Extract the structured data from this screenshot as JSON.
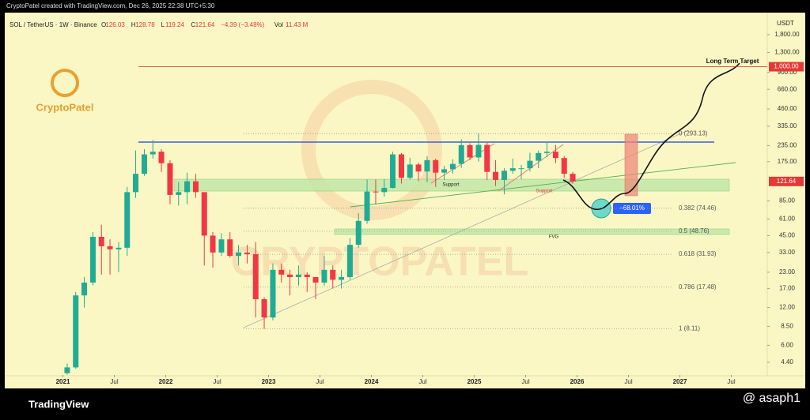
{
  "top_bar": "CryptoPatel created with TradingView.com, Dec 26, 2025 22:38 UTC+5:30",
  "brand": "TradingView",
  "author": "@ asaph1",
  "chart_data": {
    "type": "candlestick",
    "symbol": "SOL / TetherUS · 1W · Binance",
    "header_values": [
      {
        "key": "O",
        "value": "126.03"
      },
      {
        "key": "H",
        "value": "128.78"
      },
      {
        "key": "L",
        "value": "119.24"
      },
      {
        "key": "C",
        "value": "121.64"
      }
    ],
    "change": "−4.39 (−3.48%)",
    "volume_key": "Vol",
    "volume": "11.43 M",
    "currency": "USDT",
    "watermark": "CRYPTOPATEL",
    "logo_text": "CryptoPatel",
    "log_scale": true,
    "up_color": "#22ab94",
    "down_color": "#f23645",
    "x": [
      2021.042,
      2021.125,
      2021.208,
      2021.292,
      2021.375,
      2021.458,
      2021.542,
      2021.625,
      2021.708,
      2021.792,
      2021.875,
      2021.958,
      2022.042,
      2022.125,
      2022.208,
      2022.292,
      2022.375,
      2022.458,
      2022.542,
      2022.625,
      2022.708,
      2022.792,
      2022.875,
      2022.958,
      2023.042,
      2023.125,
      2023.208,
      2023.292,
      2023.375,
      2023.458,
      2023.542,
      2023.625,
      2023.708,
      2023.792,
      2023.875,
      2023.958,
      2024.042,
      2024.125,
      2024.208,
      2024.292,
      2024.375,
      2024.458,
      2024.542,
      2024.625,
      2024.708,
      2024.792,
      2024.875,
      2024.958,
      2025.042,
      2025.125,
      2025.208,
      2025.292,
      2025.375,
      2025.458,
      2025.542,
      2025.625,
      2025.708,
      2025.792,
      2025.875,
      2025.958
    ],
    "open": [
      3.6,
      4,
      15,
      19,
      44,
      37,
      35,
      36,
      100,
      140,
      200,
      210,
      170,
      95,
      100,
      122,
      100,
      45,
      33,
      42,
      31,
      33,
      32,
      14,
      10,
      24,
      22,
      21,
      22,
      21,
      19,
      24,
      20,
      21,
      38,
      59,
      101,
      100,
      108,
      200,
      130,
      166,
      146,
      180,
      143,
      152,
      168,
      237,
      189,
      238,
      145,
      125,
      148,
      155,
      155,
      178,
      205,
      210,
      187,
      140
    ],
    "high": [
      4.3,
      16,
      21,
      48,
      55,
      42,
      40,
      110,
      215,
      220,
      260,
      220,
      180,
      120,
      143,
      140,
      100,
      48,
      47,
      48,
      38,
      38,
      40,
      14.5,
      27,
      27,
      24,
      26,
      23,
      21,
      31,
      26,
      24,
      43,
      68,
      126,
      126,
      127,
      210,
      205,
      188,
      172,
      193,
      185,
      162,
      183,
      264,
      245,
      293.13,
      250,
      180,
      155,
      185,
      165,
      206,
      215,
      253,
      237,
      194,
      145
    ],
    "low": [
      3.5,
      3.9,
      12,
      18,
      22,
      22,
      23,
      31,
      90,
      135,
      185,
      145,
      80,
      78,
      80,
      90,
      26,
      25,
      31,
      30,
      26,
      27,
      10,
      8.11,
      9.5,
      19,
      15,
      18,
      16,
      14,
      18,
      17,
      17,
      20,
      36,
      56,
      80,
      92,
      107,
      117,
      126,
      122,
      120,
      110,
      125,
      140,
      156,
      180,
      175,
      125,
      112,
      96,
      140,
      127,
      146,
      155,
      190,
      170,
      130,
      117
    ],
    "close": [
      4,
      15,
      19,
      44,
      37,
      35,
      36,
      100,
      140,
      200,
      210,
      170,
      95,
      100,
      122,
      100,
      45,
      33,
      42,
      31,
      33,
      32,
      14,
      10,
      24,
      22,
      21,
      22,
      21,
      19,
      24,
      20,
      21,
      38,
      59,
      101,
      100,
      108,
      200,
      130,
      166,
      146,
      180,
      143,
      152,
      168,
      237,
      189,
      238,
      145,
      125,
      148,
      155,
      155,
      178,
      205,
      210,
      187,
      140,
      121.64
    ],
    "xlim": [
      2020.45,
      2027.85
    ],
    "xticks": [
      2021,
      {
        "value": 2021.5,
        "label": "Jul"
      },
      2022,
      {
        "value": 2022.5,
        "label": "Jul"
      },
      2023,
      {
        "value": 2023.5,
        "label": "Jul"
      },
      2024,
      {
        "value": 2024.5,
        "label": "Jul"
      },
      2025,
      {
        "value": 2025.5,
        "label": "Jul"
      },
      2026,
      {
        "value": 2026.5,
        "label": "Jul"
      },
      2027,
      {
        "value": 2027.5,
        "label": "Jul"
      }
    ],
    "ylim": [
      3.48,
      2700
    ],
    "yticks": [
      {
        "value": 1800,
        "label": "1,800.00"
      },
      {
        "value": 1300,
        "label": "1,300.00"
      },
      {
        "value": 900,
        "label": "900.00"
      },
      {
        "value": 660,
        "label": "660.00"
      },
      {
        "value": 460,
        "label": "460.00"
      },
      {
        "value": 335,
        "label": "335.00"
      },
      {
        "value": 235,
        "label": "235.00"
      },
      {
        "value": 175,
        "label": "175.00"
      },
      {
        "value": 85,
        "label": "85.00"
      },
      {
        "value": 61,
        "label": "61.00"
      },
      {
        "value": 45,
        "label": "45.00"
      },
      {
        "value": 33,
        "label": "33.00"
      },
      {
        "value": 23,
        "label": "23.00"
      },
      {
        "value": 17,
        "label": "17.00"
      },
      {
        "value": 12,
        "label": "12.00"
      },
      {
        "value": 8.5,
        "label": "8.50"
      },
      {
        "value": 6,
        "label": "6.00"
      },
      {
        "value": 4.4,
        "label": "4.40"
      }
    ],
    "price_tags": [
      {
        "value": 1000,
        "label": "1,000.00"
      },
      {
        "value": 121.64,
        "label": "121.64"
      }
    ],
    "fib_levels": [
      {
        "price": 293.13,
        "label": "0 (293.13)"
      },
      {
        "price": 74.46,
        "label": "0.382 (74.46)"
      },
      {
        "price": 48.76,
        "label": "0.5 (48.76)"
      },
      {
        "price": 31.93,
        "label": "0.618 (31.93)"
      },
      {
        "price": 17.48,
        "label": "0.786 (17.48)"
      },
      {
        "price": 8.11,
        "label": "1 (8.11)"
      }
    ],
    "annotations": {
      "target": "Long Term Target",
      "support1": "Support",
      "support2": "Support",
      "fvg": "FVG",
      "drop": "−68.01%"
    }
  }
}
